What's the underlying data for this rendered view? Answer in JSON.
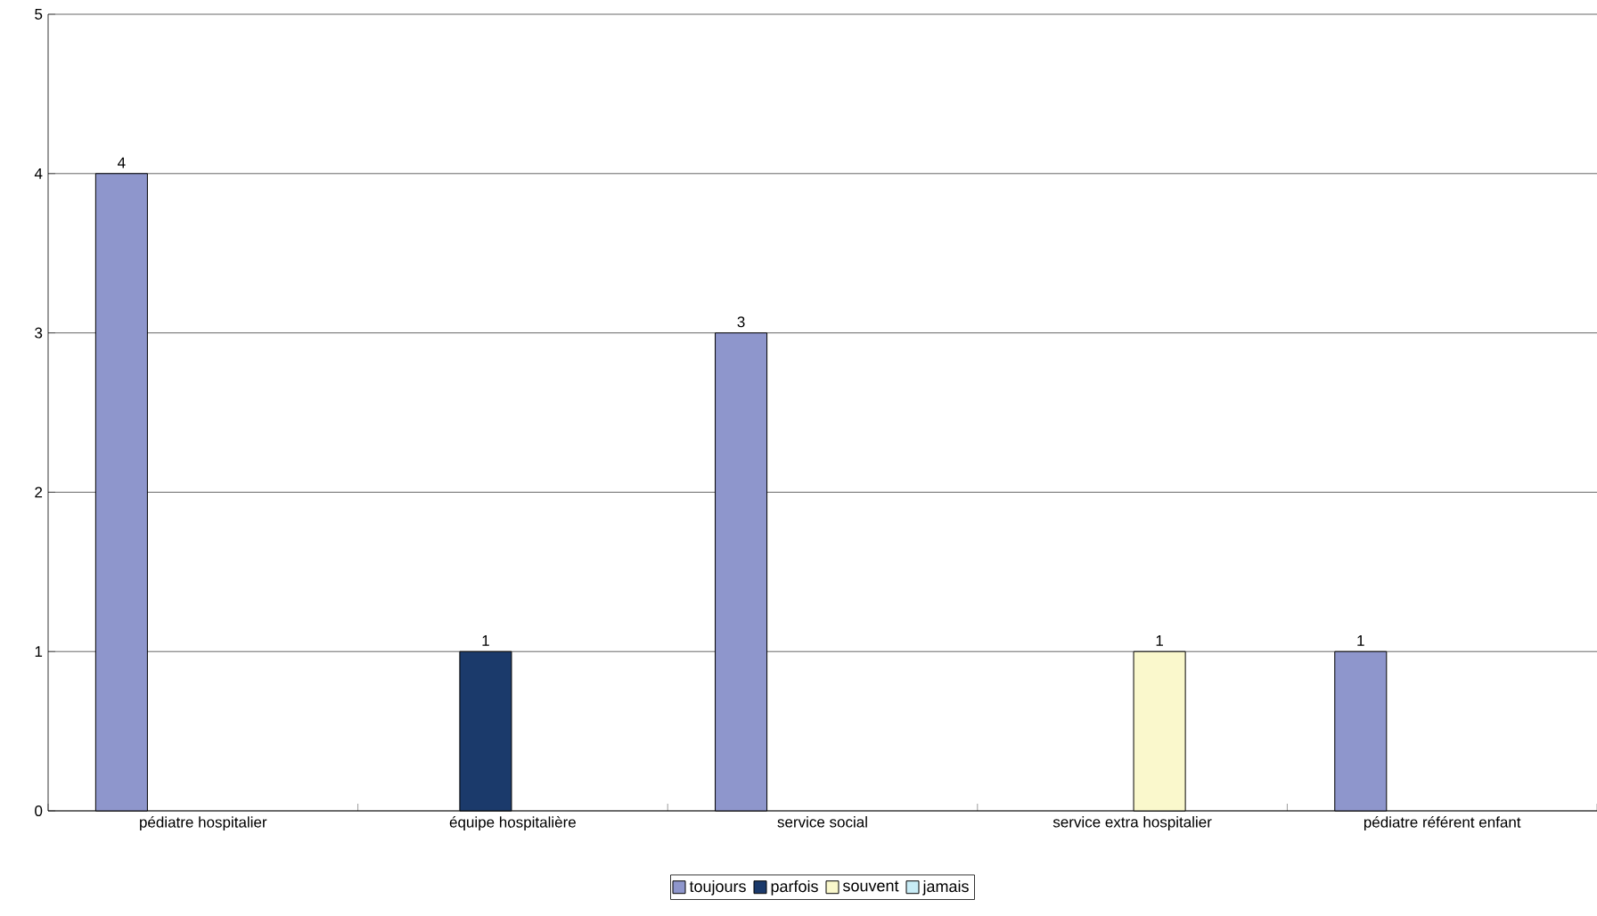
{
  "chart_data": {
    "type": "bar",
    "categories": [
      "pédiatre hospitalier",
      "équipe hospitalière",
      "service social",
      "service extra hospitalier",
      "pédiatre référent enfant"
    ],
    "series": [
      {
        "name": "toujours",
        "color": "#8e96cc",
        "values": [
          4,
          null,
          3,
          null,
          1
        ],
        "value_labels": [
          "4",
          null,
          "3",
          null,
          "1"
        ]
      },
      {
        "name": "parfois",
        "color": "#1b3a6b",
        "values": [
          null,
          1,
          null,
          null,
          null
        ],
        "value_labels": [
          null,
          "1",
          null,
          null,
          null
        ]
      },
      {
        "name": "souvent",
        "color": "#faf8cc",
        "values": [
          null,
          null,
          null,
          1,
          null
        ],
        "value_labels": [
          null,
          null,
          null,
          "1",
          null
        ]
      },
      {
        "name": "jamais",
        "color": "#c8ecf6",
        "values": [
          null,
          null,
          null,
          null,
          null
        ]
      }
    ],
    "ylim": [
      0,
      5
    ],
    "yticks": [
      0,
      1,
      2,
      3,
      4,
      5
    ],
    "grid": "y",
    "legend": "bottom"
  }
}
